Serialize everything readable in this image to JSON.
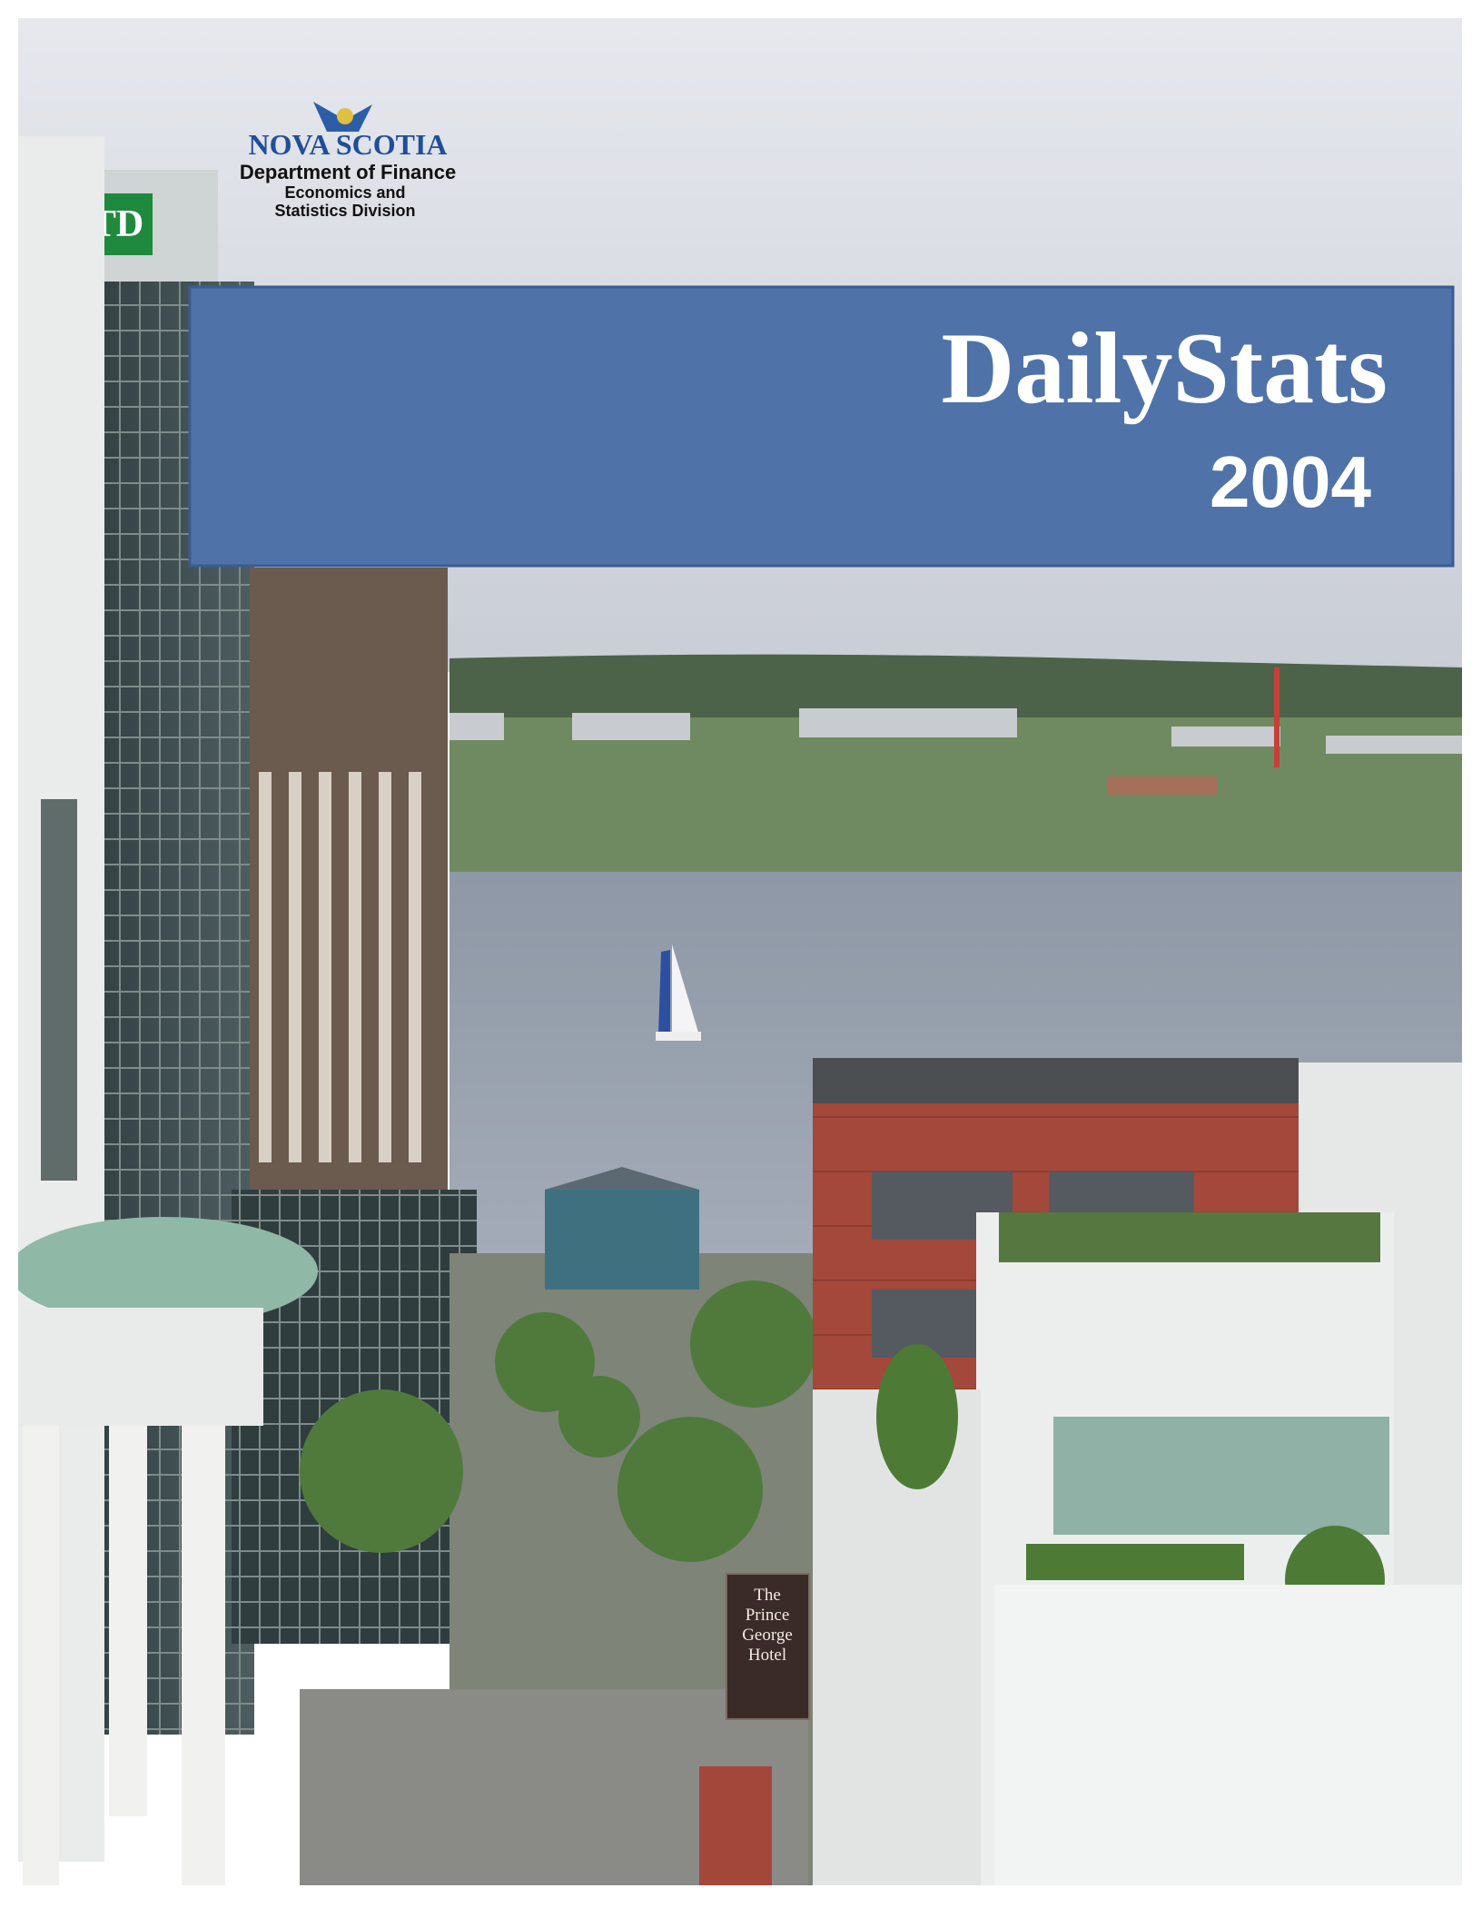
{
  "logo": {
    "name": "NOVA SCOTIA",
    "department": "Department of Finance",
    "division": [
      "Economics and",
      "Statistics Division"
    ]
  },
  "banner": {
    "title": "DailyStats",
    "year": "2004"
  },
  "photo": {
    "signs": [
      "TD",
      "The",
      "Prince",
      "George",
      "Hotel"
    ]
  }
}
